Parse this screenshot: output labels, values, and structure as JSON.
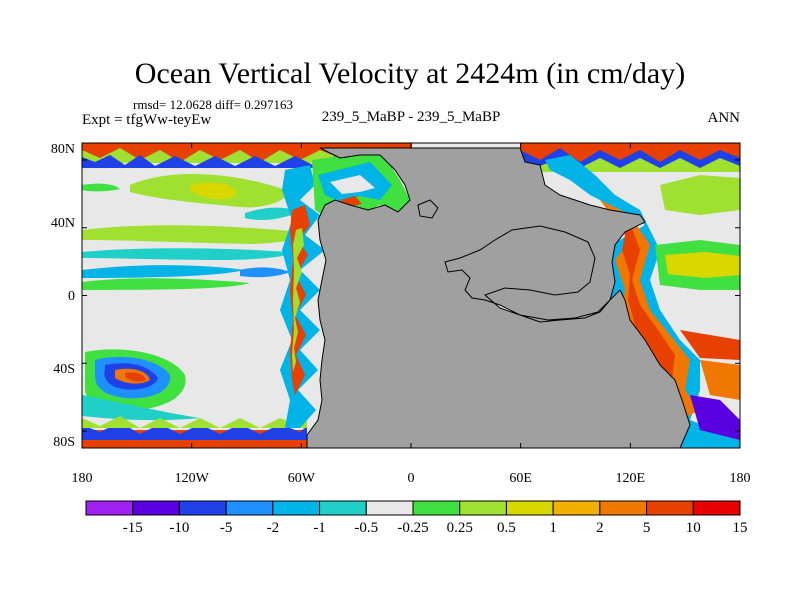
{
  "chart_data": {
    "type": "heatmap",
    "title": "Ocean Vertical Velocity at 2424m (in cm/day)",
    "stats_line": "rmsd= 12.0628 diff= 0.297163",
    "experiment": "Expt = tfgWw-teyEw",
    "subtitle": "239_5_MaBP - 239_5_MaBP",
    "season": "ANN",
    "x_range": [
      -180,
      180
    ],
    "y_range": [
      -90,
      90
    ],
    "x_ticks": [
      {
        "value": -180,
        "label": "180"
      },
      {
        "value": -120,
        "label": "120W"
      },
      {
        "value": -60,
        "label": "60W"
      },
      {
        "value": 0,
        "label": "0"
      },
      {
        "value": 60,
        "label": "60E"
      },
      {
        "value": 120,
        "label": "120E"
      },
      {
        "value": 180,
        "label": "180"
      }
    ],
    "y_ticks": [
      {
        "value": 80,
        "label": "80N"
      },
      {
        "value": 40,
        "label": "40N"
      },
      {
        "value": 0,
        "label": "0"
      },
      {
        "value": -40,
        "label": "40S"
      },
      {
        "value": -80,
        "label": "80S"
      }
    ],
    "colorbar": {
      "labels": [
        "-15",
        "-10",
        "-5",
        "-2",
        "-1",
        "-0.5",
        "-0.25",
        "0.25",
        "0.5",
        "1",
        "2",
        "5",
        "10",
        "15"
      ],
      "colors": [
        "#a020f0",
        "#5a00e0",
        "#2040e8",
        "#1e90ff",
        "#00b4e8",
        "#20d0c8",
        "#e8e8e8",
        "#40e040",
        "#a0e030",
        "#d8d800",
        "#f0b000",
        "#f07800",
        "#e84000",
        "#e80000"
      ]
    },
    "land_color": "#a0a0a0",
    "ocean_background": "#e8e8e8"
  }
}
